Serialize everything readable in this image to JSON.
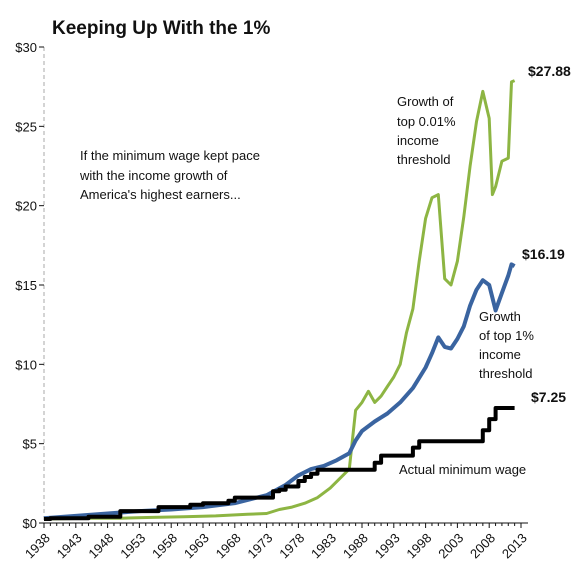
{
  "chart_data": {
    "type": "line",
    "title": "Keeping Up With the 1%",
    "xlabel": "",
    "ylabel": "",
    "xlim": [
      1938,
      2013
    ],
    "ylim": [
      0,
      30
    ],
    "grid": false,
    "x_ticks": [
      "1938",
      "1943",
      "1948",
      "1953",
      "1958",
      "1963",
      "1968",
      "1973",
      "1978",
      "1983",
      "1988",
      "1993",
      "1998",
      "2003",
      "2008",
      "2013"
    ],
    "y_ticks": [
      "$0",
      "$5",
      "$10",
      "$15",
      "$20",
      "$25",
      "$30"
    ],
    "annotations": {
      "intro": [
        "If the minimum wage kept pace",
        "with the income growth of",
        "America's highest earners..."
      ],
      "top001": [
        "Growth of",
        "top 0.01%",
        "income",
        "threshold"
      ],
      "top1": [
        "Growth",
        "of top 1%",
        "income",
        "threshold"
      ],
      "actual": "Actual minimum wage"
    },
    "series": [
      {
        "key": "top001",
        "color": "#8db543",
        "end_label": "$27.88",
        "values": [
          [
            1938,
            0.25
          ],
          [
            1945,
            0.3
          ],
          [
            1950,
            0.3
          ],
          [
            1955,
            0.35
          ],
          [
            1960,
            0.4
          ],
          [
            1965,
            0.45
          ],
          [
            1970,
            0.55
          ],
          [
            1973,
            0.6
          ],
          [
            1975,
            0.85
          ],
          [
            1977,
            1.0
          ],
          [
            1979,
            1.25
          ],
          [
            1981,
            1.6
          ],
          [
            1983,
            2.2
          ],
          [
            1985,
            3.0
          ],
          [
            1986,
            3.4
          ],
          [
            1987,
            7.1
          ],
          [
            1988,
            7.6
          ],
          [
            1989,
            8.3
          ],
          [
            1990,
            7.6
          ],
          [
            1991,
            8.0
          ],
          [
            1992,
            8.6
          ],
          [
            1993,
            9.2
          ],
          [
            1994,
            10.0
          ],
          [
            1995,
            12.0
          ],
          [
            1996,
            13.5
          ],
          [
            1997,
            16.5
          ],
          [
            1998,
            19.2
          ],
          [
            1999,
            20.5
          ],
          [
            2000,
            20.7
          ],
          [
            2001,
            15.4
          ],
          [
            2002,
            15.0
          ],
          [
            2003,
            16.5
          ],
          [
            2004,
            19.3
          ],
          [
            2005,
            22.5
          ],
          [
            2006,
            25.3
          ],
          [
            2007,
            27.2
          ],
          [
            2008,
            25.5
          ],
          [
            2008.5,
            20.7
          ],
          [
            2009,
            21.2
          ],
          [
            2010,
            22.8
          ],
          [
            2011,
            23.0
          ],
          [
            2011.5,
            27.8
          ],
          [
            2012,
            27.88
          ]
        ]
      },
      {
        "key": "top1",
        "color": "#3a64a0",
        "end_label": "$16.19",
        "values": [
          [
            1938,
            0.3
          ],
          [
            1943,
            0.45
          ],
          [
            1948,
            0.6
          ],
          [
            1953,
            0.75
          ],
          [
            1958,
            0.85
          ],
          [
            1963,
            1.0
          ],
          [
            1968,
            1.25
          ],
          [
            1973,
            1.75
          ],
          [
            1976,
            2.4
          ],
          [
            1978,
            3.0
          ],
          [
            1980,
            3.4
          ],
          [
            1982,
            3.6
          ],
          [
            1984,
            3.95
          ],
          [
            1986,
            4.4
          ],
          [
            1987,
            5.2
          ],
          [
            1988,
            5.8
          ],
          [
            1990,
            6.4
          ],
          [
            1992,
            6.9
          ],
          [
            1994,
            7.6
          ],
          [
            1996,
            8.5
          ],
          [
            1998,
            9.8
          ],
          [
            1999,
            10.7
          ],
          [
            2000,
            11.7
          ],
          [
            2001,
            11.1
          ],
          [
            2002,
            11.0
          ],
          [
            2003,
            11.6
          ],
          [
            2004,
            12.4
          ],
          [
            2005,
            13.7
          ],
          [
            2006,
            14.7
          ],
          [
            2007,
            15.3
          ],
          [
            2008,
            15.0
          ],
          [
            2009,
            13.4
          ],
          [
            2010,
            14.5
          ],
          [
            2011,
            15.6
          ],
          [
            2011.5,
            16.3
          ],
          [
            2012,
            16.19
          ]
        ]
      },
      {
        "key": "actual",
        "color": "#000000",
        "end_label": "$7.25",
        "step": true,
        "values": [
          [
            1938,
            0.25
          ],
          [
            1939,
            0.3
          ],
          [
            1945,
            0.4
          ],
          [
            1950,
            0.75
          ],
          [
            1956,
            1.0
          ],
          [
            1961,
            1.15
          ],
          [
            1963,
            1.25
          ],
          [
            1967,
            1.4
          ],
          [
            1968,
            1.6
          ],
          [
            1974,
            2.0
          ],
          [
            1975,
            2.1
          ],
          [
            1976,
            2.3
          ],
          [
            1978,
            2.65
          ],
          [
            1979,
            2.9
          ],
          [
            1980,
            3.1
          ],
          [
            1981,
            3.35
          ],
          [
            1990,
            3.8
          ],
          [
            1991,
            4.25
          ],
          [
            1996,
            4.75
          ],
          [
            1997,
            5.15
          ],
          [
            2007,
            5.85
          ],
          [
            2008,
            6.55
          ],
          [
            2009,
            7.25
          ],
          [
            2012,
            7.25
          ]
        ]
      }
    ]
  }
}
